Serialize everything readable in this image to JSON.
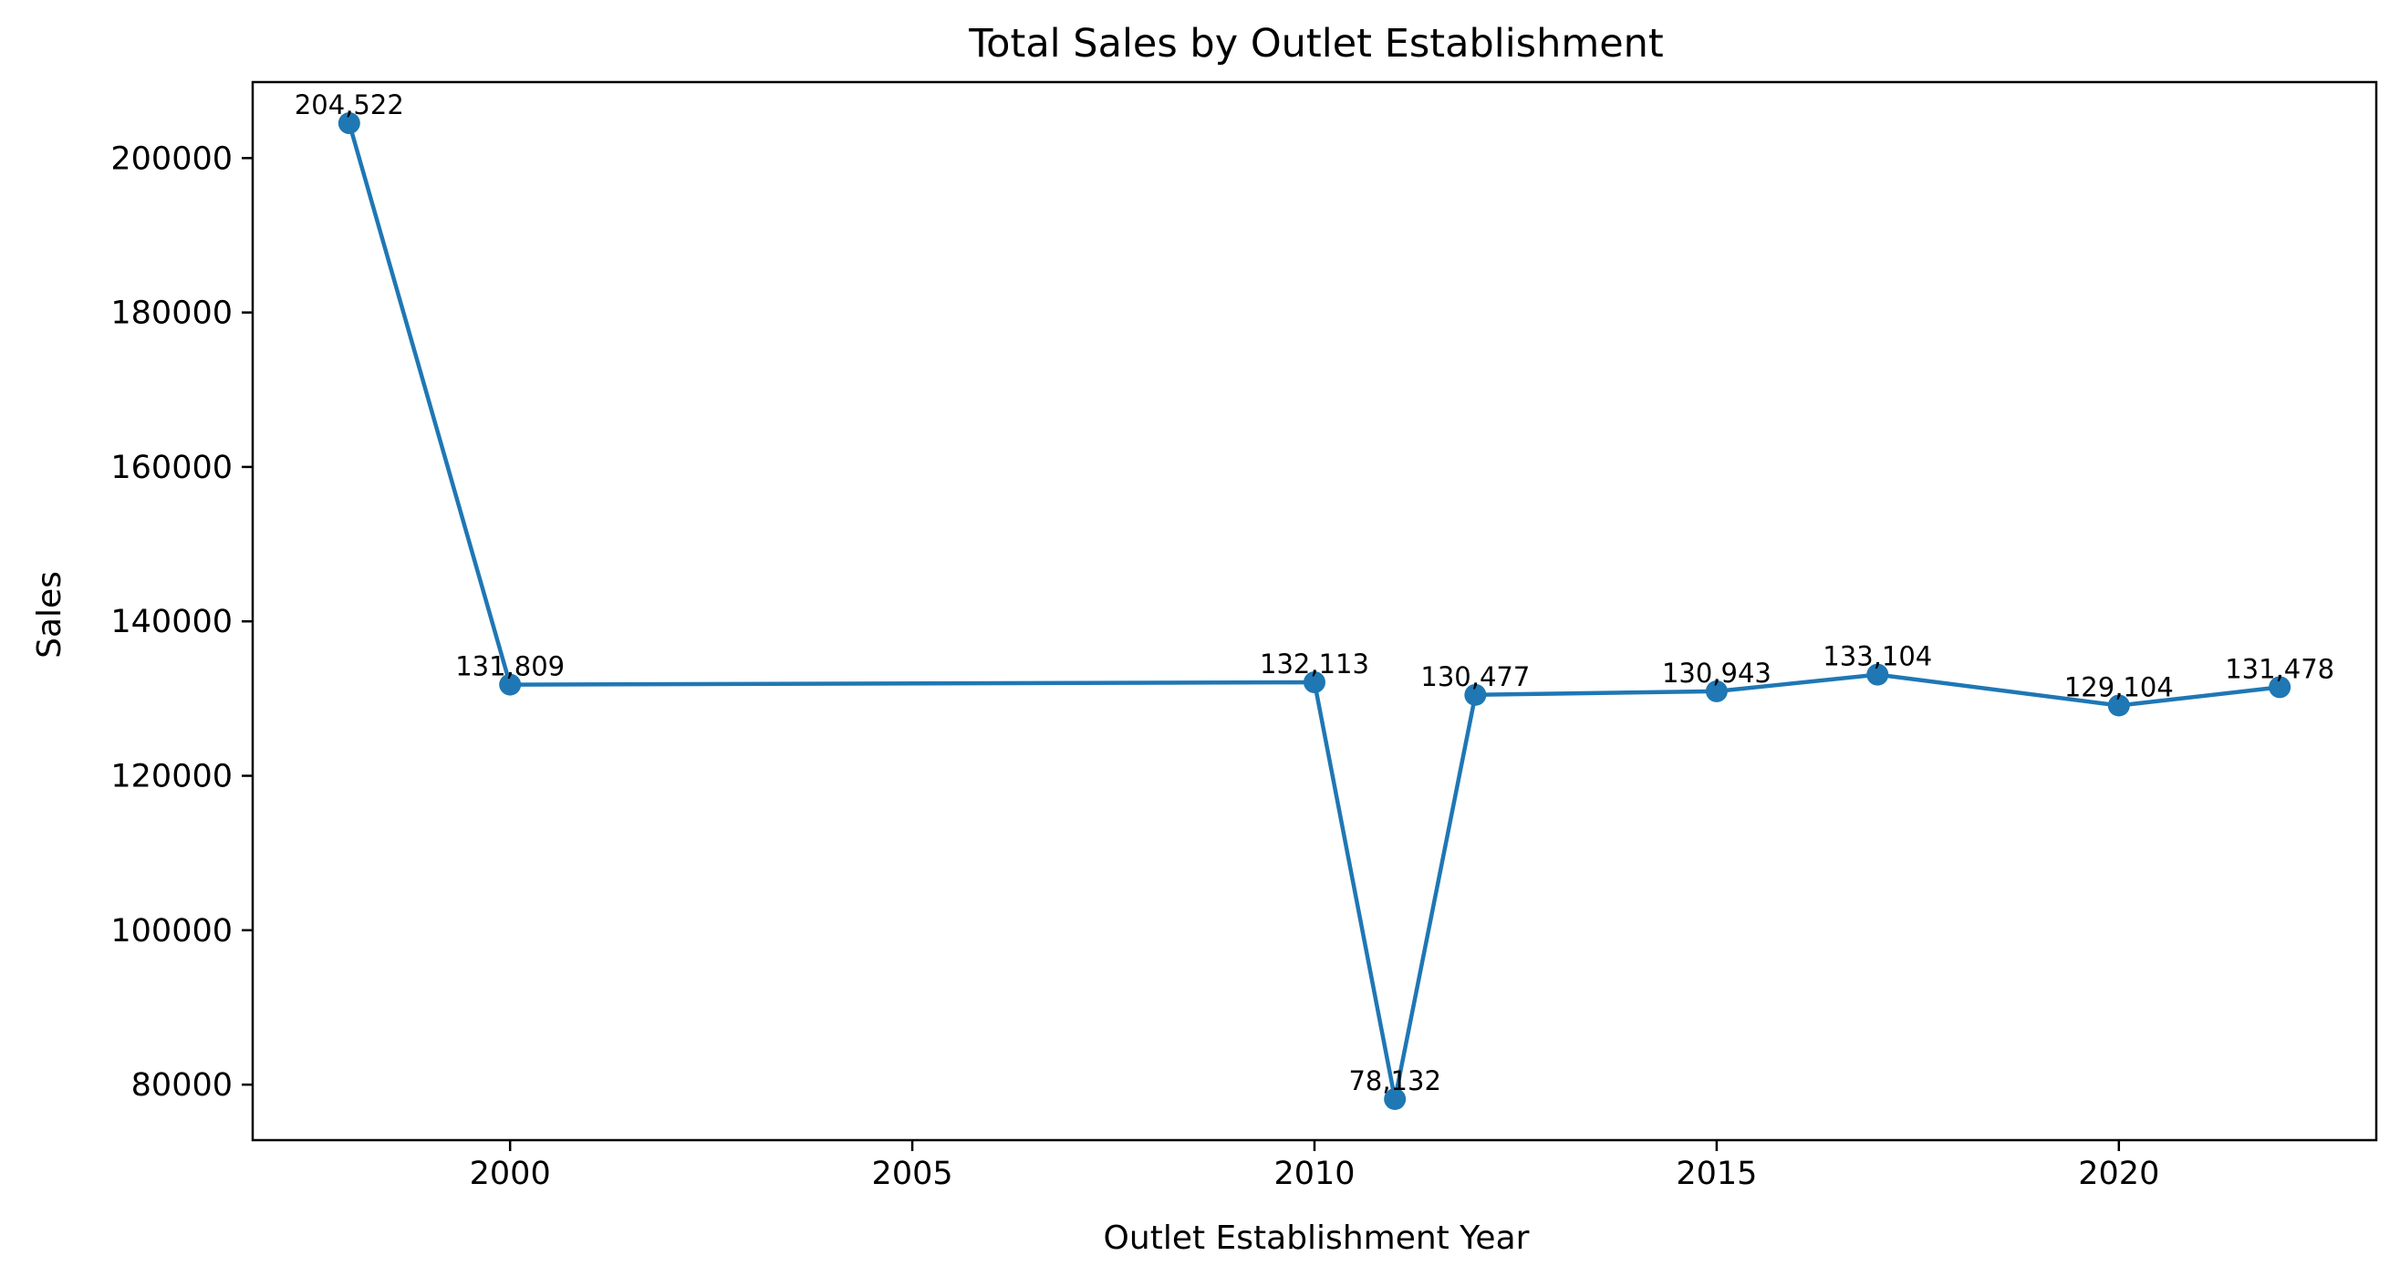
{
  "chart_data": {
    "type": "line",
    "title": "Total Sales by Outlet Establishment",
    "xlabel": "Outlet Establishment Year",
    "ylabel": "Sales",
    "x": [
      1998,
      2000,
      2010,
      2011,
      2012,
      2015,
      2017,
      2020,
      2022
    ],
    "series": [
      {
        "values": [
          204522,
          131809,
          132113,
          78132,
          130477,
          130943,
          133104,
          129104,
          131478
        ],
        "labels": [
          "204,522",
          "131,809",
          "132,113",
          "78,132",
          "130,477",
          "130,943",
          "133,104",
          "129,104",
          "131,478"
        ],
        "color": "#1f77b4",
        "marker": "circle"
      }
    ],
    "xticks": [
      2000,
      2005,
      2010,
      2015,
      2020
    ],
    "xtick_labels": [
      "2000",
      "2005",
      "2010",
      "2015",
      "2020"
    ],
    "yticks": [
      80000,
      100000,
      120000,
      140000,
      160000,
      180000,
      200000
    ],
    "ytick_labels": [
      "80000",
      "100000",
      "120000",
      "140000",
      "160000",
      "180000",
      "200000"
    ],
    "xlim": [
      1996.8,
      2023.2
    ],
    "ylim": [
      72812,
      209842
    ],
    "grid": false,
    "legend": "none"
  }
}
